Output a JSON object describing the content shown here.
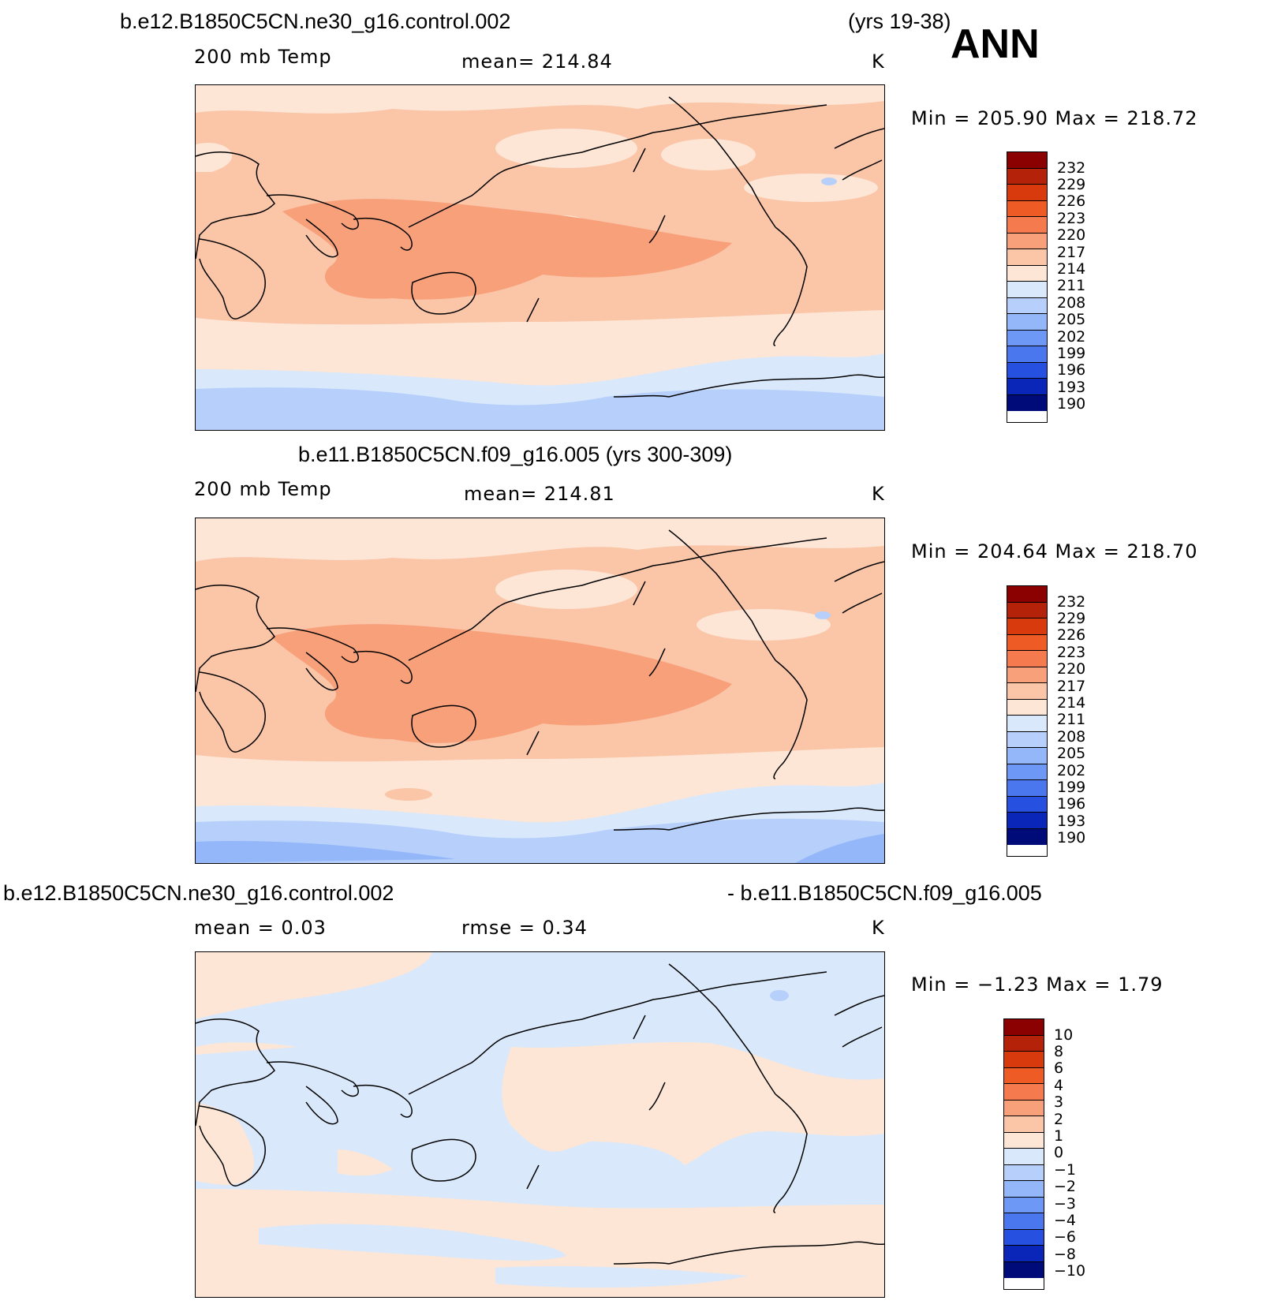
{
  "season": "ANN",
  "panels": [
    {
      "case_title": "b.e12.B1850C5CN.ne30_g16.control.002",
      "case_years": "(yrs 19-38)",
      "variable": "200 mb Temp",
      "mean_text": "mean=  214.84",
      "units": "K",
      "minmax": "Min  =  205.90  Max  =  218.72",
      "colorbar_labels": [
        "232",
        "229",
        "226",
        "223",
        "220",
        "217",
        "214",
        "211",
        "208",
        "205",
        "202",
        "199",
        "196",
        "193",
        "190"
      ],
      "colorbar_colors": [
        "#8b0000",
        "#b5220a",
        "#d83a0e",
        "#ef5b25",
        "#f57a4d",
        "#f8a07a",
        "#fbc5a8",
        "#fde6d6",
        "#d9e8fb",
        "#b7d0fb",
        "#94b7fa",
        "#6d98f5",
        "#4a77ee",
        "#2550e0",
        "#0a26b8",
        "#000b7a"
      ]
    },
    {
      "case_title": "b.e11.B1850C5CN.f09_g16.005 (yrs 300-309)",
      "variable": "200 mb Temp",
      "mean_text": "mean=  214.81",
      "units": "K",
      "minmax": "Min  =  204.64  Max  =  218.70",
      "colorbar_labels": [
        "232",
        "229",
        "226",
        "223",
        "220",
        "217",
        "214",
        "211",
        "208",
        "205",
        "202",
        "199",
        "196",
        "193",
        "190"
      ],
      "colorbar_colors": [
        "#8b0000",
        "#b5220a",
        "#d83a0e",
        "#ef5b25",
        "#f57a4d",
        "#f8a07a",
        "#fbc5a8",
        "#fde6d6",
        "#d9e8fb",
        "#b7d0fb",
        "#94b7fa",
        "#6d98f5",
        "#4a77ee",
        "#2550e0",
        "#0a26b8",
        "#000b7a"
      ]
    },
    {
      "case_title": "b.e12.B1850C5CN.ne30_g16.control.002",
      "case_minus": "- b.e11.B1850C5CN.f09_g16.005",
      "mean_text": "mean  =     0.03",
      "rmse_text": "rmse  =     0.34",
      "units": "K",
      "minmax": "Min  =    −1.23  Max  =      1.79",
      "colorbar_labels": [
        "10",
        "8",
        "6",
        "4",
        "3",
        "2",
        "1",
        "0",
        "−1",
        "−2",
        "−3",
        "−4",
        "−6",
        "−8",
        "−10"
      ],
      "colorbar_colors": [
        "#8b0000",
        "#b5220a",
        "#d83a0e",
        "#ef5b25",
        "#f57a4d",
        "#f8a07a",
        "#fbc5a8",
        "#fde6d6",
        "#d9e8fb",
        "#b7d0fb",
        "#94b7fa",
        "#6d98f5",
        "#4a77ee",
        "#2550e0",
        "#0a26b8",
        "#000b7a"
      ]
    }
  ]
}
